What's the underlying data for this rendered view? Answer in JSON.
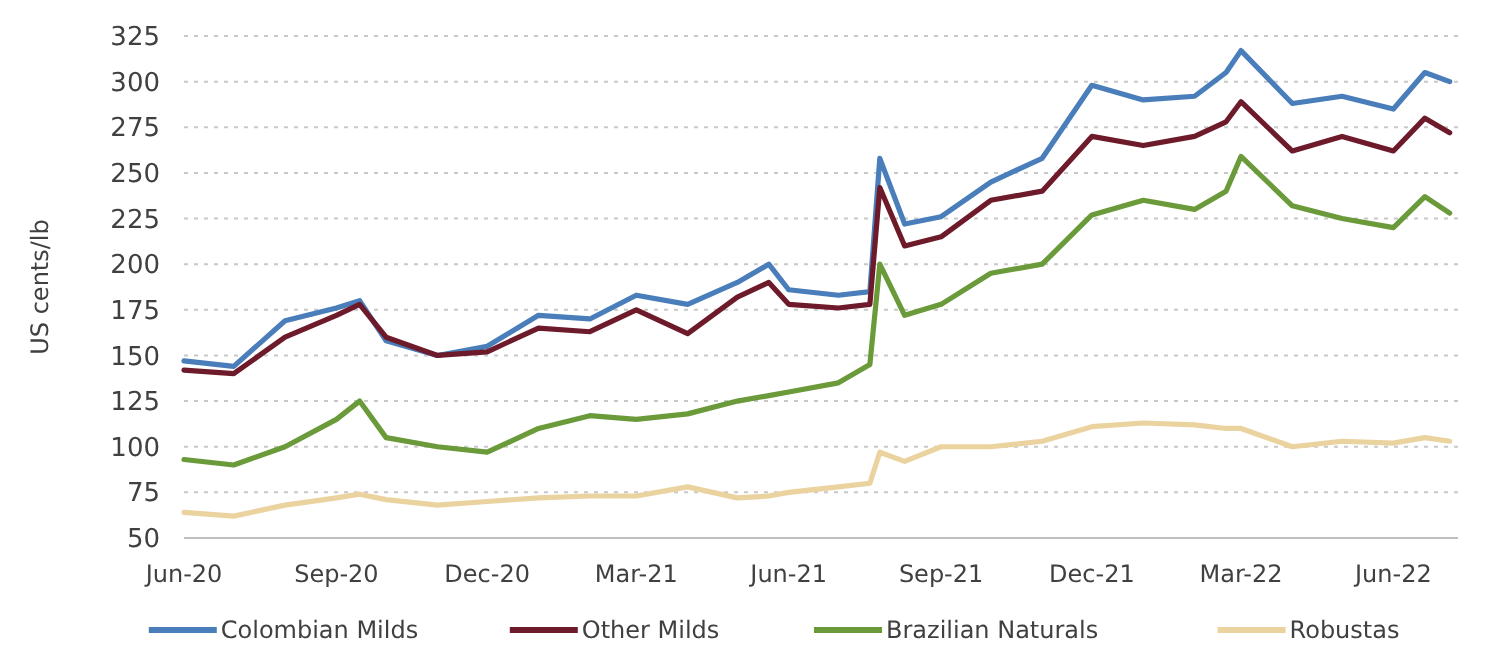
{
  "chart_data": {
    "type": "line",
    "ylabel": "US cents/lb",
    "x": [
      "2020-06-01",
      "2020-07-01",
      "2020-08-01",
      "2020-09-01",
      "2020-09-15",
      "2020-10-01",
      "2020-11-01",
      "2020-12-01",
      "2021-01-01",
      "2021-02-01",
      "2021-03-01",
      "2021-04-01",
      "2021-05-01",
      "2021-05-20",
      "2021-06-01",
      "2021-07-01",
      "2021-07-20",
      "2021-07-26",
      "2021-08-10",
      "2021-09-01",
      "2021-10-01",
      "2021-11-01",
      "2021-12-01",
      "2022-01-01",
      "2022-02-01",
      "2022-02-20",
      "2022-03-01",
      "2022-04-01",
      "2022-05-01",
      "2022-06-01",
      "2022-06-20",
      "2022-07-05"
    ],
    "series": [
      {
        "name": "Colombian Milds",
        "color": "#4a7ebb",
        "values": [
          147,
          144,
          169,
          176,
          180,
          158,
          150,
          155,
          172,
          170,
          183,
          178,
          190,
          200,
          186,
          183,
          185,
          258,
          222,
          226,
          245,
          258,
          298,
          290,
          292,
          305,
          317,
          288,
          292,
          285,
          305,
          300
        ]
      },
      {
        "name": "Other Milds",
        "color": "#6d1a2a",
        "values": [
          142,
          140,
          160,
          172,
          178,
          160,
          150,
          152,
          165,
          163,
          175,
          162,
          182,
          190,
          178,
          176,
          178,
          242,
          210,
          215,
          235,
          240,
          270,
          265,
          270,
          278,
          289,
          262,
          270,
          262,
          280,
          272
        ]
      },
      {
        "name": "Brazilian Naturals",
        "color": "#6a9a3a",
        "values": [
          93,
          90,
          100,
          115,
          125,
          105,
          100,
          97,
          110,
          117,
          115,
          118,
          125,
          128,
          130,
          135,
          145,
          200,
          172,
          178,
          195,
          200,
          227,
          235,
          230,
          240,
          259,
          232,
          225,
          220,
          237,
          228
        ]
      },
      {
        "name": "Robustas",
        "color": "#ebd3a0",
        "values": [
          64,
          62,
          68,
          72,
          74,
          71,
          68,
          70,
          72,
          73,
          73,
          78,
          72,
          73,
          75,
          78,
          80,
          97,
          92,
          100,
          100,
          103,
          111,
          113,
          112,
          110,
          110,
          100,
          103,
          102,
          105,
          103
        ]
      }
    ],
    "xlim": [
      "2020-06-01",
      "2022-07-10"
    ],
    "xticks": [
      {
        "value": "2020-06-01",
        "label": "Jun-20"
      },
      {
        "value": "2020-09-01",
        "label": "Sep-20"
      },
      {
        "value": "2020-12-01",
        "label": "Dec-20"
      },
      {
        "value": "2021-03-01",
        "label": "Mar-21"
      },
      {
        "value": "2021-06-01",
        "label": "Jun-21"
      },
      {
        "value": "2021-09-01",
        "label": "Sep-21"
      },
      {
        "value": "2021-12-01",
        "label": "Dec-21"
      },
      {
        "value": "2022-03-01",
        "label": "Mar-22"
      },
      {
        "value": "2022-06-01",
        "label": "Jun-22"
      }
    ],
    "ylim": [
      50,
      325
    ],
    "yticks": [
      50,
      75,
      100,
      125,
      150,
      175,
      200,
      225,
      250,
      275,
      300,
      325
    ],
    "grid": "y",
    "legend": "bottom",
    "marker": "none",
    "line_style": "solid"
  }
}
